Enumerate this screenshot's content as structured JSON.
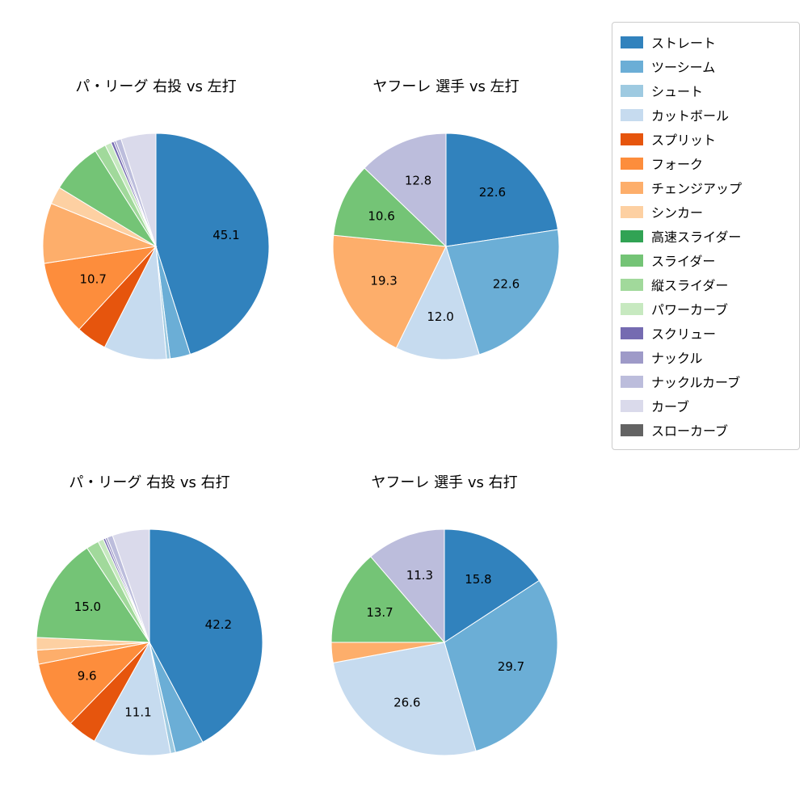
{
  "page": {
    "background": "#ffffff",
    "text_color": "#000000"
  },
  "legend": {
    "position": "top-right",
    "items": [
      {
        "label": "ストレート",
        "color": "#3182bd"
      },
      {
        "label": "ツーシーム",
        "color": "#6baed6"
      },
      {
        "label": "シュート",
        "color": "#9ecae1"
      },
      {
        "label": "カットボール",
        "color": "#c6dbef"
      },
      {
        "label": "スプリット",
        "color": "#e6550d"
      },
      {
        "label": "フォーク",
        "color": "#fd8d3c"
      },
      {
        "label": "チェンジアップ",
        "color": "#fdae6b"
      },
      {
        "label": "シンカー",
        "color": "#fdd0a2"
      },
      {
        "label": "高速スライダー",
        "color": "#31a354"
      },
      {
        "label": "スライダー",
        "color": "#74c476"
      },
      {
        "label": "縦スライダー",
        "color": "#a1d99b"
      },
      {
        "label": "パワーカーブ",
        "color": "#c7e9c0"
      },
      {
        "label": "スクリュー",
        "color": "#756bb1"
      },
      {
        "label": "ナックル",
        "color": "#9e9ac8"
      },
      {
        "label": "ナックルカーブ",
        "color": "#bcbddc"
      },
      {
        "label": "カーブ",
        "color": "#dadaeb"
      },
      {
        "label": "スローカーブ",
        "color": "#636363"
      }
    ]
  },
  "chart_data": [
    {
      "type": "pie",
      "title": "パ・リーグ 右投 vs 左打",
      "start_angle_deg": 90,
      "direction": "clockwise",
      "label_note": "percent labels shown only for large slices",
      "slices": [
        {
          "name": "ストレート",
          "value": 45.1,
          "label": "45.1"
        },
        {
          "name": "ツーシーム",
          "value": 2.9,
          "label": ""
        },
        {
          "name": "シュート",
          "value": 0.5,
          "label": ""
        },
        {
          "name": "カットボール",
          "value": 9.0,
          "label": ""
        },
        {
          "name": "スプリット",
          "value": 4.4,
          "label": ""
        },
        {
          "name": "フォーク",
          "value": 10.7,
          "label": "10.7"
        },
        {
          "name": "チェンジアップ",
          "value": 8.6,
          "label": ""
        },
        {
          "name": "シンカー",
          "value": 2.5,
          "label": ""
        },
        {
          "name": "スライダー",
          "value": 7.3,
          "label": ""
        },
        {
          "name": "縦スライダー",
          "value": 1.6,
          "label": ""
        },
        {
          "name": "パワーカーブ",
          "value": 0.9,
          "label": ""
        },
        {
          "name": "スクリュー",
          "value": 0.4,
          "label": ""
        },
        {
          "name": "ナックル",
          "value": 0.3,
          "label": ""
        },
        {
          "name": "ナックルカーブ",
          "value": 0.8,
          "label": ""
        },
        {
          "name": "カーブ",
          "value": 5.0,
          "label": ""
        }
      ]
    },
    {
      "type": "pie",
      "title": "ヤフーレ 選手 vs 左打",
      "start_angle_deg": 90,
      "direction": "clockwise",
      "slices": [
        {
          "name": "ストレート",
          "value": 22.6,
          "label": "22.6"
        },
        {
          "name": "ツーシーム",
          "value": 22.6,
          "label": "22.6"
        },
        {
          "name": "カットボール",
          "value": 12.0,
          "label": "12.0"
        },
        {
          "name": "チェンジアップ",
          "value": 19.3,
          "label": "19.3"
        },
        {
          "name": "スライダー",
          "value": 10.6,
          "label": "10.6"
        },
        {
          "name": "ナックルカーブ",
          "value": 12.8,
          "label": "12.8"
        }
      ]
    },
    {
      "type": "pie",
      "title": "パ・リーグ 右投 vs 右打",
      "start_angle_deg": 90,
      "direction": "clockwise",
      "slices": [
        {
          "name": "ストレート",
          "value": 42.2,
          "label": "42.2"
        },
        {
          "name": "ツーシーム",
          "value": 4.1,
          "label": ""
        },
        {
          "name": "シュート",
          "value": 0.7,
          "label": ""
        },
        {
          "name": "カットボール",
          "value": 11.1,
          "label": "11.1"
        },
        {
          "name": "スプリット",
          "value": 4.2,
          "label": ""
        },
        {
          "name": "フォーク",
          "value": 9.6,
          "label": "9.6"
        },
        {
          "name": "チェンジアップ",
          "value": 2.0,
          "label": ""
        },
        {
          "name": "シンカー",
          "value": 1.8,
          "label": ""
        },
        {
          "name": "スライダー",
          "value": 15.0,
          "label": "15.0"
        },
        {
          "name": "縦スライダー",
          "value": 1.8,
          "label": ""
        },
        {
          "name": "パワーカーブ",
          "value": 0.8,
          "label": ""
        },
        {
          "name": "スクリュー",
          "value": 0.3,
          "label": ""
        },
        {
          "name": "ナックル",
          "value": 0.3,
          "label": ""
        },
        {
          "name": "ナックルカーブ",
          "value": 0.8,
          "label": ""
        },
        {
          "name": "カーブ",
          "value": 5.3,
          "label": ""
        }
      ]
    },
    {
      "type": "pie",
      "title": "ヤフーレ 選手 vs 右打",
      "start_angle_deg": 90,
      "direction": "clockwise",
      "slices": [
        {
          "name": "ストレート",
          "value": 15.8,
          "label": "15.8"
        },
        {
          "name": "ツーシーム",
          "value": 29.7,
          "label": "29.7"
        },
        {
          "name": "カットボール",
          "value": 26.6,
          "label": "26.6"
        },
        {
          "name": "チェンジアップ",
          "value": 2.9,
          "label": ""
        },
        {
          "name": "スライダー",
          "value": 13.7,
          "label": "13.7"
        },
        {
          "name": "ナックルカーブ",
          "value": 11.3,
          "label": "11.3"
        }
      ]
    }
  ]
}
